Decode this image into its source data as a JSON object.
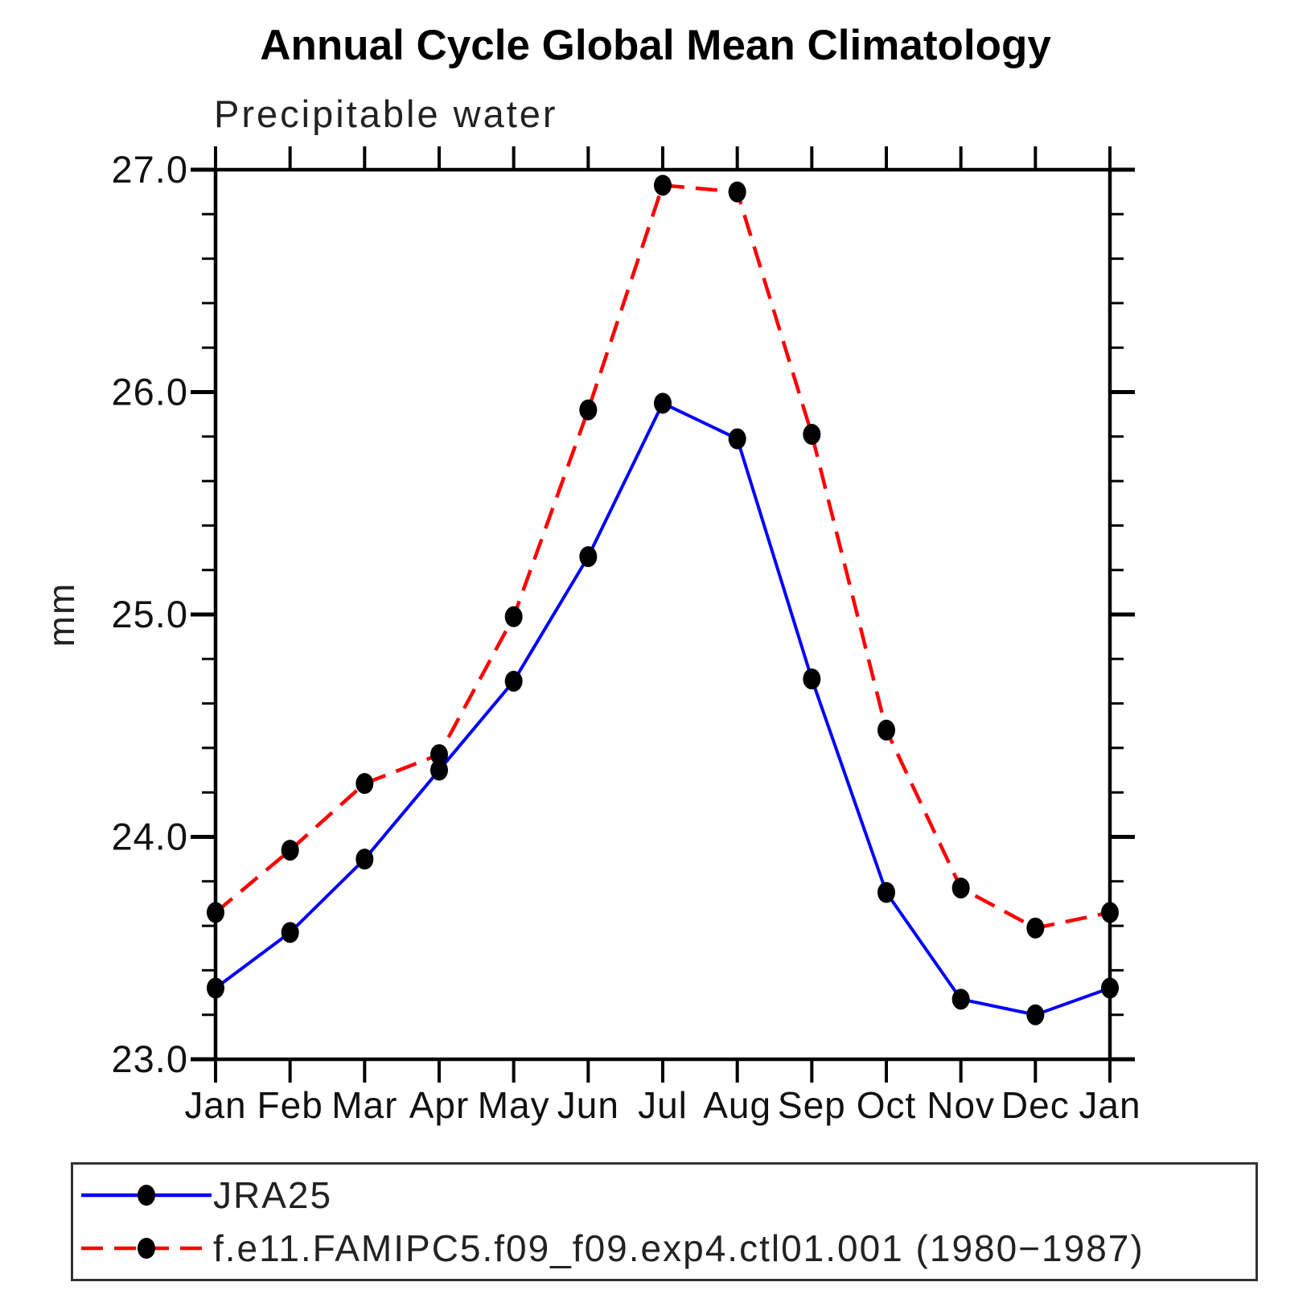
{
  "page": {
    "background": "#ffffff"
  },
  "chart_data": {
    "type": "line",
    "title": "Annual Cycle Global Mean Climatology",
    "subtitle": "Precipitable water",
    "xlabel": "",
    "ylabel": "mm",
    "categories": [
      "Jan",
      "Feb",
      "Mar",
      "Apr",
      "May",
      "Jun",
      "Jul",
      "Aug",
      "Sep",
      "Oct",
      "Nov",
      "Dec",
      "Jan"
    ],
    "series": [
      {
        "name": "JRA25",
        "color": "#0000ff",
        "line_style": "solid",
        "marker": "circle",
        "marker_color": "#000000",
        "values": [
          23.32,
          23.57,
          23.9,
          24.3,
          24.7,
          25.26,
          25.95,
          25.79,
          24.71,
          23.75,
          23.27,
          23.2,
          23.32
        ]
      },
      {
        "name": "f.e11.FAMIPC5.f09_f09.exp4.ctl01.001 (1980−1987)",
        "color": "#ff0000",
        "line_style": "dashed",
        "marker": "circle",
        "marker_color": "#000000",
        "values": [
          23.66,
          23.94,
          24.24,
          24.37,
          24.99,
          25.92,
          26.93,
          26.9,
          25.81,
          24.48,
          23.77,
          23.59,
          23.66
        ]
      }
    ],
    "ylim": [
      23.0,
      27.0
    ],
    "ytick_labels": [
      "23.0",
      "24.0",
      "25.0",
      "26.0",
      "27.0"
    ],
    "ytick_minor_step": 0.2,
    "grid": false,
    "legend_position": "bottom-left-box",
    "axis_color": "#000000"
  }
}
